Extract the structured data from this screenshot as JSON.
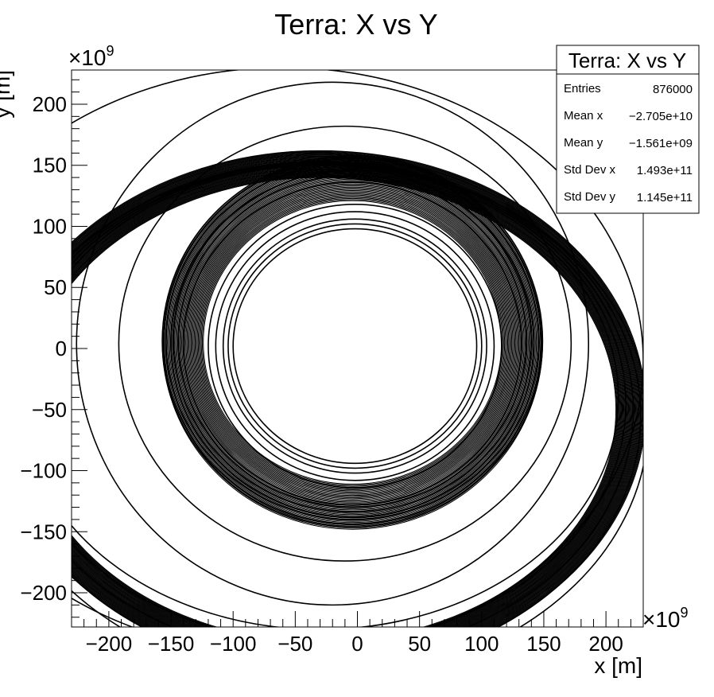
{
  "chart_data": {
    "type": "scatter",
    "title": "Terra: X vs Y",
    "xlabel": "x [m]",
    "ylabel": "y [m]",
    "x_exponent_label": "×10",
    "x_exponent_power": "9",
    "y_exponent_label": "×10",
    "y_exponent_power": "9",
    "xlim": [
      -230,
      230
    ],
    "ylim": [
      -228,
      228
    ],
    "x_ticks": [
      -200,
      -150,
      -100,
      -50,
      0,
      50,
      100,
      150,
      200
    ],
    "y_ticks": [
      -200,
      -150,
      -100,
      -50,
      0,
      50,
      100,
      150,
      200
    ],
    "x_tick_labels": [
      "−200",
      "−150",
      "−100",
      "−50",
      "0",
      "50",
      "100",
      "150",
      "200"
    ],
    "y_tick_labels": [
      "−200",
      "−150",
      "−100",
      "−50",
      "0",
      "50",
      "100",
      "150",
      "200"
    ],
    "grid": false,
    "marker_color": "#000000",
    "orbits": [
      {
        "cx": -2,
        "cy": 2,
        "rx": 98,
        "ry": 96
      },
      {
        "cx": -2,
        "cy": 2,
        "rx": 102,
        "ry": 100
      },
      {
        "cx": -2,
        "cy": 2,
        "rx": 106,
        "ry": 104
      },
      {
        "cx": -2,
        "cy": 2,
        "rx": 112,
        "ry": 110
      },
      {
        "cx": -2,
        "cy": 2,
        "rx": 118,
        "ry": 116
      },
      {
        "cx": -4,
        "cy": 4,
        "rx": 136,
        "ry": 132
      },
      {
        "cx": -4,
        "cy": 6,
        "rx": 140,
        "ry": 136
      },
      {
        "cx": -4,
        "cy": 6,
        "rx": 144,
        "ry": 140
      },
      {
        "cx": -4,
        "cy": 4,
        "rx": 146,
        "ry": 142
      },
      {
        "cx": -4,
        "cy": 6,
        "rx": 150,
        "ry": 146
      },
      {
        "cx": -4,
        "cy": 6,
        "rx": 152,
        "ry": 150
      },
      {
        "cx": -4,
        "cy": 6,
        "rx": 153,
        "ry": 152
      },
      {
        "cx": -10,
        "cy": 4,
        "rx": 182,
        "ry": 178
      },
      {
        "cx": -20,
        "cy": 4,
        "rx": 206,
        "ry": 214
      },
      {
        "cx": -30,
        "cy": -40,
        "rx": 240,
        "ry": 190
      },
      {
        "cx": -30,
        "cy": -45,
        "rx": 246,
        "ry": 196
      },
      {
        "cx": -30,
        "cy": -50,
        "rx": 252,
        "ry": 202
      },
      {
        "cx": -30,
        "cy": -55,
        "rx": 258,
        "ry": 208
      },
      {
        "cx": -30,
        "cy": -60,
        "rx": 264,
        "ry": 212
      },
      {
        "cx": -60,
        "cy": -10,
        "rx": 290,
        "ry": 240
      }
    ],
    "bands": [
      {
        "cx": -4,
        "cy": 5,
        "rx_min": 120,
        "rx_max": 153,
        "ry_min": 116,
        "ry_max": 153
      },
      {
        "cx": -30,
        "cy": -50,
        "rx_min": 238,
        "rx_max": 262,
        "ry_min": 190,
        "ry_max": 212
      }
    ]
  },
  "stats_box": {
    "title": "Terra: X vs Y",
    "rows": [
      {
        "label": "Entries",
        "value": "876000"
      },
      {
        "label": "Mean x",
        "value": "−2.705e+10"
      },
      {
        "label": "Mean y",
        "value": "−1.561e+09"
      },
      {
        "label": "Std Dev x",
        "value": "1.493e+11"
      },
      {
        "label": "Std Dev y",
        "value": "1.145e+11"
      }
    ]
  }
}
